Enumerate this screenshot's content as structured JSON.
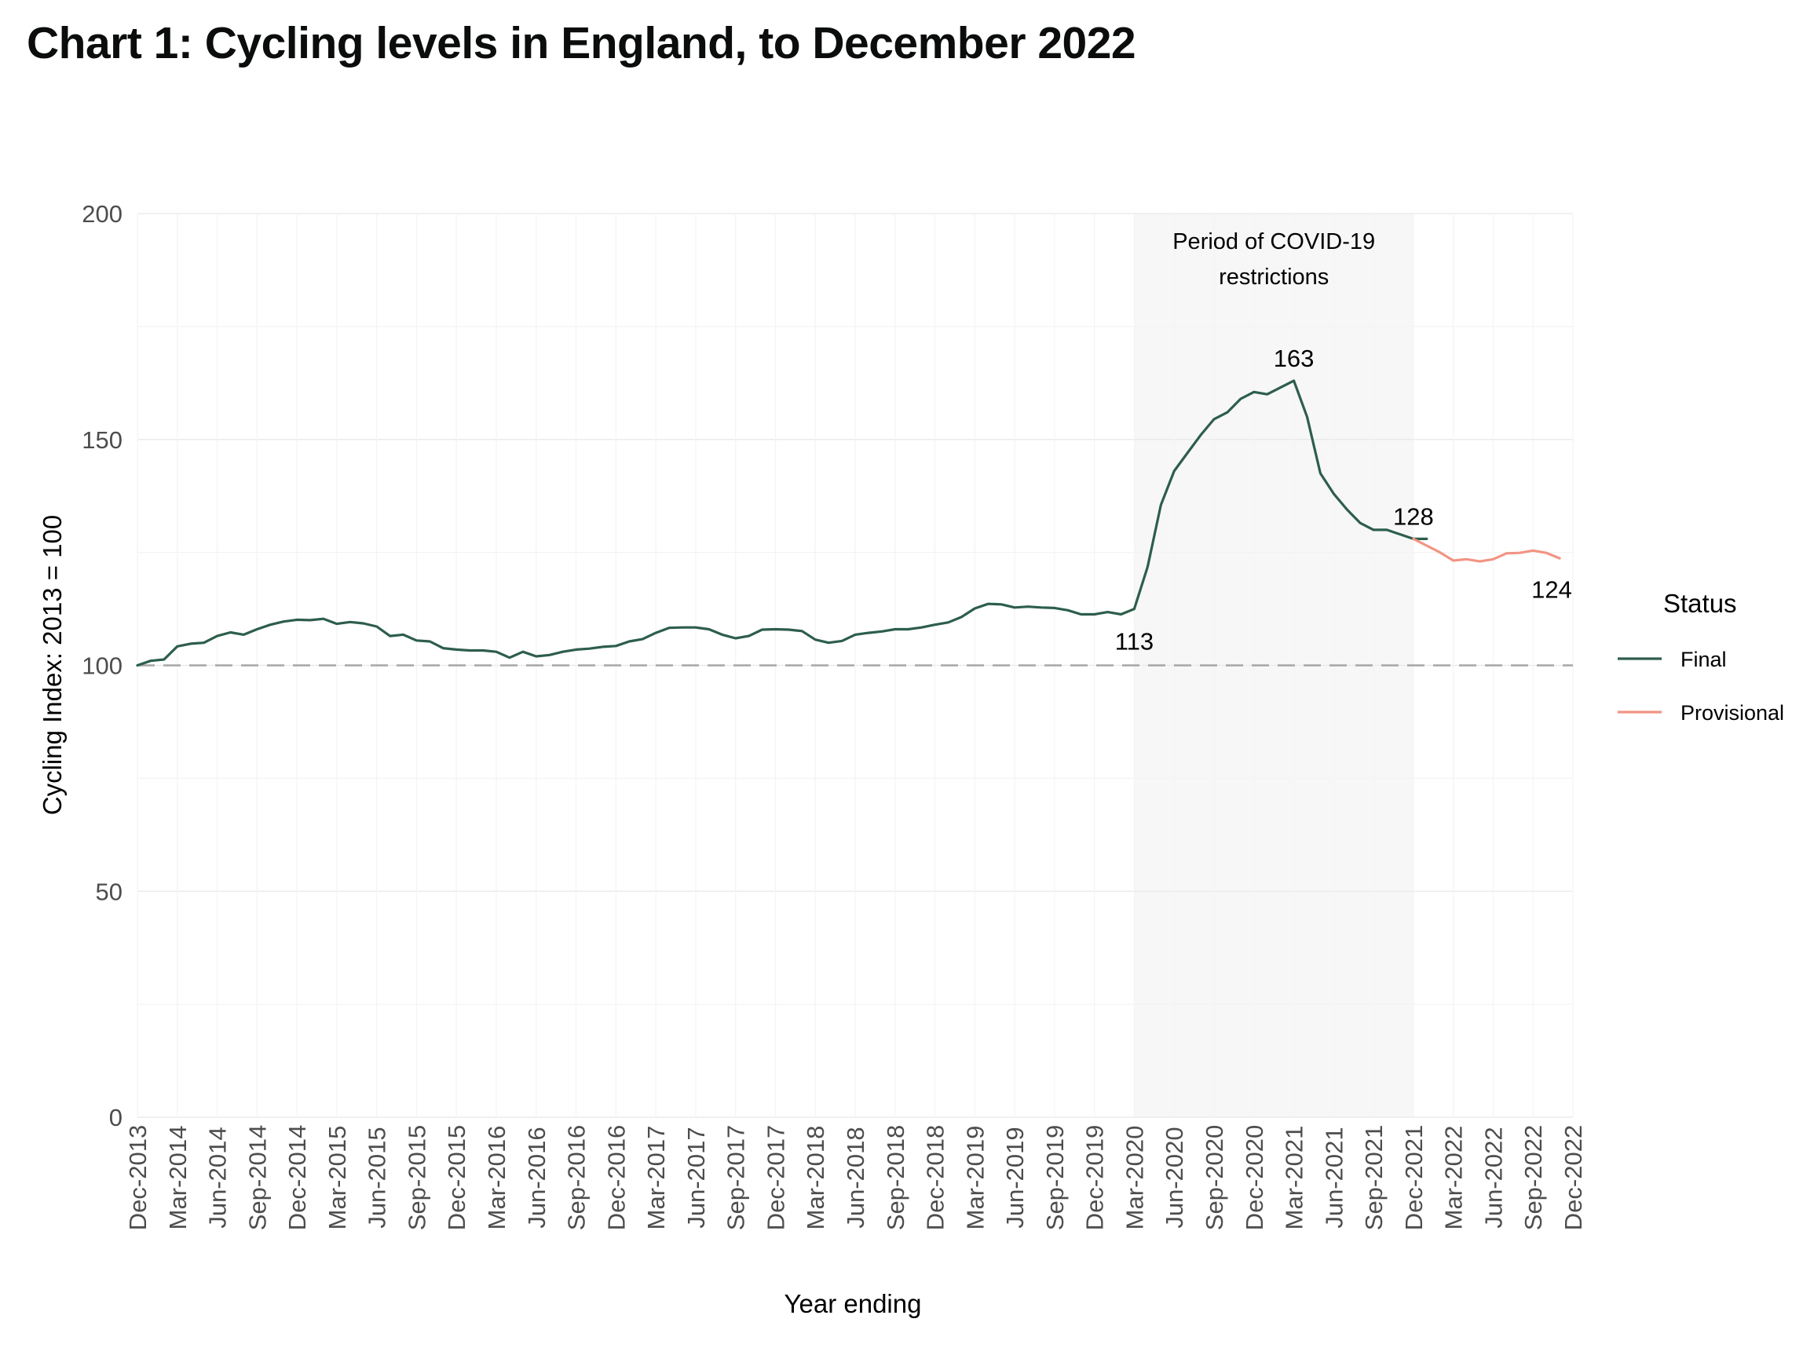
{
  "title": "Chart 1: Cycling levels in England, to December 2022",
  "chart_data": {
    "type": "line",
    "title": "Chart 1: Cycling levels in England, to December 2022",
    "xlabel": "Year ending",
    "ylabel": "Cycling Index: 2013 = 100",
    "ylim": [
      0,
      200
    ],
    "yticks": [
      0,
      50,
      100,
      150,
      200
    ],
    "grid": true,
    "x_tick_labels": [
      "Dec-2013",
      "Mar-2014",
      "Jun-2014",
      "Sep-2014",
      "Dec-2014",
      "Mar-2015",
      "Jun-2015",
      "Sep-2015",
      "Dec-2015",
      "Mar-2016",
      "Jun-2016",
      "Sep-2016",
      "Dec-2016",
      "Mar-2017",
      "Jun-2017",
      "Sep-2017",
      "Dec-2017",
      "Mar-2018",
      "Jun-2018",
      "Sep-2018",
      "Dec-2018",
      "Mar-2019",
      "Jun-2019",
      "Sep-2019",
      "Dec-2019",
      "Mar-2020",
      "Jun-2020",
      "Sep-2020",
      "Dec-2020",
      "Mar-2021",
      "Jun-2021",
      "Sep-2021",
      "Dec-2021",
      "Mar-2022",
      "Jun-2022",
      "Sep-2022",
      "Dec-2022"
    ],
    "x_start": "Dec-2013",
    "x_interval": "month",
    "reference_line": {
      "y": 100,
      "style": "dashed"
    },
    "shaded_region": {
      "from": "Mar-2020",
      "to": "Dec-2021",
      "label_lines": [
        "Period of COVID-19",
        "restrictions"
      ]
    },
    "series": [
      {
        "name": "Final",
        "color": "#2d5e4b",
        "start": "Dec-2013",
        "values": [
          100.0,
          101.0,
          101.3,
          104.2,
          104.8,
          105.0,
          106.5,
          107.3,
          106.8,
          108.0,
          109.0,
          109.7,
          110.1,
          110.0,
          110.3,
          109.2,
          109.6,
          109.3,
          108.6,
          106.5,
          106.8,
          105.5,
          105.3,
          103.8,
          103.5,
          103.3,
          103.3,
          103.0,
          101.7,
          103.0,
          102.0,
          102.3,
          103.0,
          103.5,
          103.7,
          104.1,
          104.3,
          105.3,
          105.8,
          107.2,
          108.3,
          108.4,
          108.4,
          108.0,
          106.8,
          106.0,
          106.5,
          107.9,
          108.0,
          107.9,
          107.6,
          105.7,
          105.0,
          105.4,
          106.8,
          107.2,
          107.5,
          108.0,
          108.0,
          108.4,
          109.0,
          109.5,
          110.7,
          112.6,
          113.6,
          113.5,
          112.8,
          113.0,
          112.8,
          112.7,
          112.2,
          111.3,
          111.3,
          111.8,
          111.3,
          112.5,
          121.8,
          135.5,
          143.0,
          147.0,
          151.0,
          154.5,
          156.0,
          159.0,
          160.5,
          160.0,
          161.5,
          163.0,
          155.0,
          142.5,
          138.0,
          134.5,
          131.5,
          130.0,
          130.0,
          129.0,
          128.0,
          128.0
        ]
      },
      {
        "name": "Provisional",
        "color": "#f29483",
        "start": "Dec-2021",
        "values": [
          128.0,
          126.5,
          125.0,
          123.2,
          123.5,
          123.0,
          123.5,
          124.8,
          124.9,
          125.4,
          124.9,
          123.7
        ]
      }
    ],
    "annotations": [
      {
        "label": "113",
        "x": "Mar-2020",
        "y": 112.5
      },
      {
        "label": "163",
        "x": "Mar-2021",
        "y": 163
      },
      {
        "label": "128",
        "x": "Dec-2021",
        "y": 128
      },
      {
        "label": "124",
        "x": "Dec-2022",
        "y": 124
      }
    ],
    "legend": {
      "title": "Status",
      "position": "right",
      "entries": [
        {
          "label": "Final",
          "color": "#2d5e4b"
        },
        {
          "label": "Provisional",
          "color": "#f29483"
        }
      ]
    }
  }
}
